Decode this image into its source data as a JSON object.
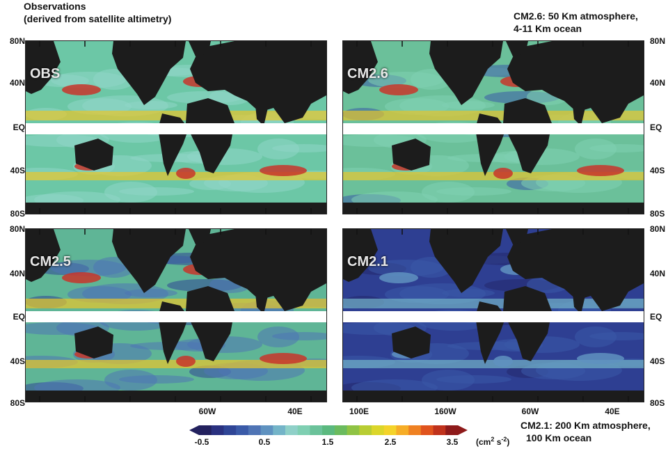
{
  "headers": {
    "obs_title_line1": "Observations",
    "obs_title_line2": "(derived from satellite altimetry)",
    "cm26_note_line1": "CM2.6: 50 Km atmosphere,",
    "cm26_note_line2": "4-11 Km ocean",
    "cm21_note_line1": "CM2.1: 200 Km atmosphere,",
    "cm21_note_line2": "100 Km ocean"
  },
  "panels": [
    {
      "label": "OBS",
      "palette": "obs"
    },
    {
      "label": "CM2.6",
      "palette": "cm26"
    },
    {
      "label": "CM2.5",
      "palette": "cm25"
    },
    {
      "label": "CM2.1",
      "palette": "cm21"
    }
  ],
  "lat_labels": [
    "80N",
    "40N",
    "EQ",
    "40S",
    "80S"
  ],
  "lon_labels_left": [
    "60W",
    "40E"
  ],
  "lon_labels_right": [
    "100E",
    "160W",
    "60W",
    "40E"
  ],
  "colorbar": {
    "ticks": [
      "-0.5",
      "0.5",
      "1.5",
      "2.5",
      "3.5"
    ],
    "unit": "(cm",
    "unit_sup": "2",
    "unit_mid": " s",
    "unit_sup2": "-2",
    "unit_end": ")",
    "colors": [
      "#23215e",
      "#2a3180",
      "#2f4596",
      "#3a5aa8",
      "#4f74b5",
      "#5f92c0",
      "#74b4c8",
      "#8fd0c8",
      "#7fcfb2",
      "#6bc29a",
      "#5bb97f",
      "#6bbb5e",
      "#8fc344",
      "#b8cd33",
      "#dbd62a",
      "#f4d32a",
      "#f6ad27",
      "#ef8122",
      "#e0531d",
      "#c0321c",
      "#8e1a1a"
    ]
  },
  "colors": {
    "land": "#1c1c1c",
    "eq_band": "#ffffff"
  }
}
